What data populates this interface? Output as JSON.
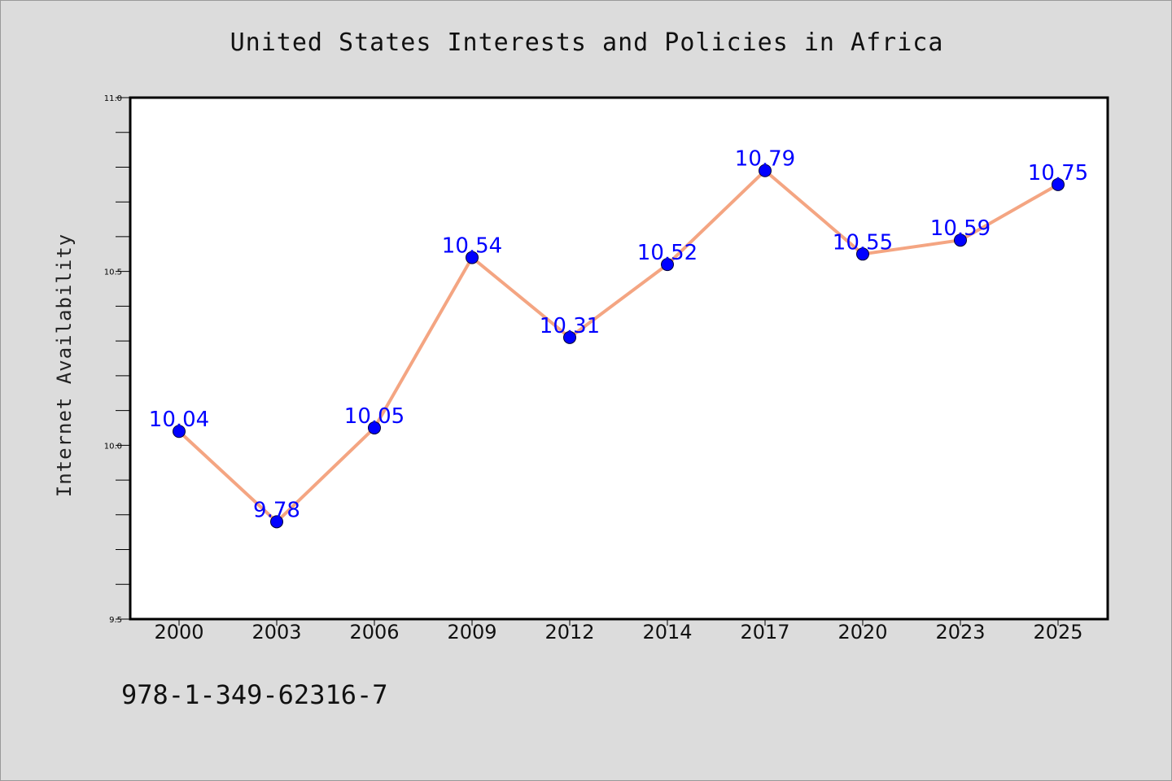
{
  "title": "United States Interests and Policies in Africa",
  "isbn": "978-1-349-62316-7",
  "colors": {
    "background": "#dcdcdc",
    "plot_area": "#ffffff",
    "line": "#f4a582",
    "marker": "#0000ff",
    "data_label": "#0000ff"
  },
  "chart_data": {
    "type": "line",
    "title": "United States Interests and Policies in Africa",
    "xlabel": "",
    "ylabel": "Internet Availability",
    "categories": [
      "2000",
      "2003",
      "2006",
      "2009",
      "2012",
      "2014",
      "2017",
      "2020",
      "2023",
      "2025"
    ],
    "values": [
      10.04,
      9.78,
      10.05,
      10.54,
      10.31,
      10.52,
      10.79,
      10.55,
      10.59,
      10.75
    ],
    "data_labels": [
      "10.04",
      "9.78",
      "10.05",
      "10.54",
      "10.31",
      "10.52",
      "10.79",
      "10.55",
      "10.59",
      "10.75"
    ],
    "ylim": [
      9.5,
      11.0
    ],
    "yticks": [
      "9.5",
      "10.0",
      "10.5",
      "11.0"
    ],
    "grid": false,
    "legend": "none"
  }
}
